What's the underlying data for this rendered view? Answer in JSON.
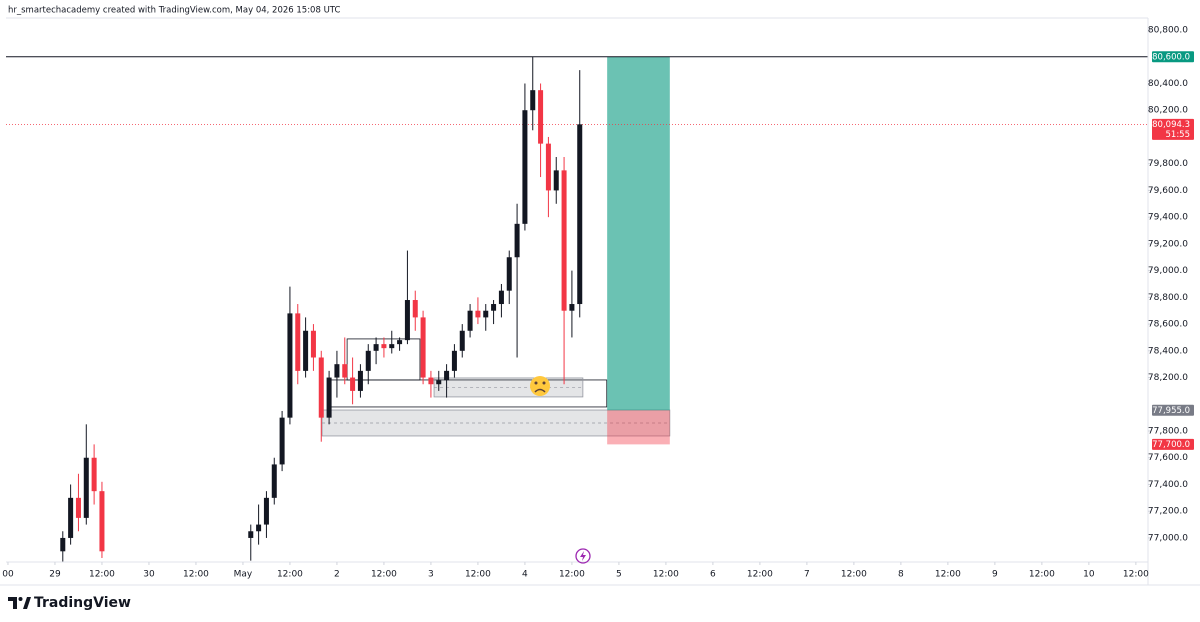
{
  "header": {
    "text": "hr_smartechacademy created with TradingView.com, May 04, 2026 15:08 UTC"
  },
  "footer": {
    "brand": "TradingView"
  },
  "chart_data": {
    "type": "candlestick",
    "up_color": "#131722",
    "down_color": "#f23645",
    "x": [
      2,
      4,
      6,
      8,
      10,
      12,
      50,
      52,
      54,
      56,
      58,
      60,
      62,
      64,
      66,
      68,
      70,
      72,
      74,
      76,
      78,
      80,
      82,
      84,
      86,
      88,
      90,
      92,
      94,
      96,
      98,
      100,
      102,
      104,
      106,
      108,
      110,
      112,
      114,
      116,
      118,
      120,
      122,
      124,
      126,
      128,
      130,
      132,
      134
    ],
    "open": [
      76900,
      77000,
      77300,
      77150,
      77600,
      77350,
      77000,
      77050,
      77100,
      77300,
      77550,
      77900,
      78680,
      78250,
      78550,
      78350,
      77900,
      78200,
      78300,
      78200,
      78100,
      78250,
      78400,
      78450,
      78420,
      78450,
      78480,
      78780,
      78650,
      78200,
      78150,
      78180,
      78250,
      78400,
      78550,
      78700,
      78650,
      78700,
      78750,
      78850,
      79100,
      79350,
      80200,
      80350,
      79950,
      79600,
      79750,
      78700,
      78750
    ],
    "high": [
      77050,
      77400,
      77480,
      77850,
      77700,
      77420,
      77100,
      77250,
      77350,
      77600,
      77950,
      78880,
      78750,
      78650,
      78600,
      78400,
      78250,
      78400,
      78500,
      78350,
      78300,
      78450,
      78500,
      78500,
      78550,
      78500,
      79150,
      78850,
      78700,
      78250,
      78250,
      78300,
      78450,
      78600,
      78750,
      78800,
      78750,
      78780,
      78900,
      79150,
      79500,
      80400,
      80600,
      80400,
      80000,
      79850,
      79850,
      79000,
      80500
    ],
    "low": [
      76820,
      76950,
      77050,
      77100,
      77250,
      76850,
      76830,
      76950,
      77000,
      77250,
      77500,
      77850,
      78150,
      78200,
      78250,
      77720,
      77850,
      78050,
      78150,
      78000,
      78050,
      78150,
      78300,
      78350,
      78380,
      78400,
      78450,
      78550,
      78150,
      78050,
      78100,
      78050,
      78200,
      78350,
      78500,
      78600,
      78550,
      78600,
      78650,
      78750,
      78350,
      79300,
      80050,
      79700,
      79400,
      79500,
      78150,
      78500,
      78650
    ],
    "close": [
      77000,
      77300,
      77150,
      77600,
      77350,
      76900,
      77050,
      77100,
      77300,
      77550,
      77900,
      78680,
      78250,
      78550,
      78350,
      77900,
      78200,
      78300,
      78200,
      78100,
      78250,
      78400,
      78450,
      78420,
      78450,
      78480,
      78780,
      78650,
      78200,
      78150,
      78180,
      78250,
      78400,
      78550,
      78700,
      78650,
      78700,
      78750,
      78850,
      79100,
      79350,
      80200,
      80350,
      79950,
      79600,
      79750,
      78700,
      78750,
      80094.3
    ],
    "xlim": [
      -12.5,
      279.1
    ],
    "ylim": [
      76820,
      80875
    ],
    "grid": false,
    "xticks": [
      {
        "value": -12,
        "label": "00"
      },
      {
        "value": 0,
        "label": "29"
      },
      {
        "value": 12,
        "label": "12:00"
      },
      {
        "value": 24,
        "label": "30"
      },
      {
        "value": 36,
        "label": "12:00"
      },
      {
        "value": 48,
        "label": "May"
      },
      {
        "value": 60,
        "label": "12:00"
      },
      {
        "value": 72,
        "label": "2"
      },
      {
        "value": 84,
        "label": "12:00"
      },
      {
        "value": 96,
        "label": "3"
      },
      {
        "value": 108,
        "label": "12:00"
      },
      {
        "value": 120,
        "label": "4"
      },
      {
        "value": 132,
        "label": "12:00"
      },
      {
        "value": 144,
        "label": "5"
      },
      {
        "value": 156,
        "label": "12:00"
      },
      {
        "value": 168,
        "label": "6"
      },
      {
        "value": 180,
        "label": "12:00"
      },
      {
        "value": 192,
        "label": "7"
      },
      {
        "value": 204,
        "label": "12:00"
      },
      {
        "value": 216,
        "label": "8"
      },
      {
        "value": 228,
        "label": "12:00"
      },
      {
        "value": 240,
        "label": "9"
      },
      {
        "value": 252,
        "label": "12:00"
      },
      {
        "value": 264,
        "label": "10"
      },
      {
        "value": 276,
        "label": "12:00"
      }
    ],
    "yticks": [
      {
        "value": 80800,
        "label": "80,800.0"
      },
      {
        "value": 80400,
        "label": "80,400.0"
      },
      {
        "value": 80200,
        "label": "80,200.0"
      },
      {
        "value": 79800,
        "label": "79,800.0"
      },
      {
        "value": 79600,
        "label": "79,600.0"
      },
      {
        "value": 79400,
        "label": "79,400.0"
      },
      {
        "value": 79200,
        "label": "79,200.0"
      },
      {
        "value": 79000,
        "label": "79,000.0"
      },
      {
        "value": 78800,
        "label": "78,800.0"
      },
      {
        "value": 78600,
        "label": "78,600.0"
      },
      {
        "value": 78400,
        "label": "78,400.0"
      },
      {
        "value": 78200,
        "label": "78,200.0"
      },
      {
        "value": 77800,
        "label": "77,800.0"
      },
      {
        "value": 77600,
        "label": "77,600.0"
      },
      {
        "value": 77400,
        "label": "77,400.0"
      },
      {
        "value": 77200,
        "label": "77,200.0"
      },
      {
        "value": 77000,
        "label": "77,000.0"
      }
    ],
    "last_price": {
      "value": 80094.3,
      "label": "80,094.3",
      "countdown": "51:55",
      "color": "#f23645"
    },
    "position": {
      "x": [
        141,
        157
      ],
      "target": {
        "value": 80600,
        "label": "80,600.0",
        "color": "#089981"
      },
      "entry": {
        "value": 77955,
        "label": "77,955.0",
        "color": "#787b86"
      },
      "stop": {
        "value": 77700,
        "label": "77,700.0",
        "color": "#f23645"
      }
    },
    "zones": [
      {
        "x": [
          74.6,
          93.2
        ],
        "y": [
          78182,
          78489
        ],
        "style": "outline"
      },
      {
        "x": [
          70.5,
          140.9
        ],
        "y": [
          77980,
          78182
        ],
        "style": "outline"
      },
      {
        "x": [
          96.8,
          134.8
        ],
        "y": [
          78055,
          78197
        ],
        "style": "fill"
      },
      {
        "x": [
          68.2,
          157
        ],
        "y": [
          77763,
          77957
        ],
        "style": "fill"
      }
    ]
  }
}
